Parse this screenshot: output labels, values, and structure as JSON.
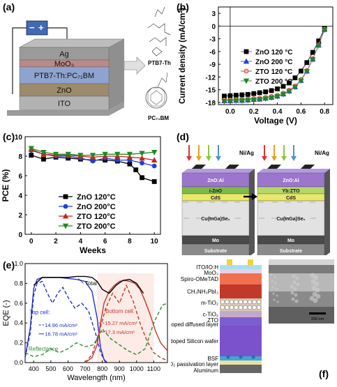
{
  "panels": {
    "a": {
      "label": "(a)",
      "layers": [
        "Ag",
        "MoO₃",
        "PTB7-Th:PC₇₁BM",
        "ZnO",
        "ITO"
      ],
      "layer_colors": [
        "#9b9b9b",
        "#b98a8a",
        "#8fa3cf",
        "#9c8b6c",
        "#b2b2b2"
      ],
      "minus": "−",
      "plus": "+",
      "molecule_1": "PTB7-Th",
      "molecule_2": "PC₇₁BM"
    },
    "b": {
      "label": "(b)",
      "ylabel": "Current density (mA/cm²)",
      "xlabel": "Voltage (V)",
      "yticks": [
        "3",
        "0",
        "-3",
        "-6",
        "-9",
        "-12",
        "-15",
        "-18"
      ],
      "xticks": [
        "0.0",
        "0.2",
        "0.4",
        "0.6",
        "0.8"
      ],
      "legend": [
        "ZnO  120 °C",
        "ZnO  200 °C",
        "ZTO  120 °C",
        "ZTO  200 °C"
      ]
    },
    "c": {
      "label": "(c)",
      "ylabel": "PCE (%)",
      "xlabel": "Weeks",
      "yticks": [
        "10",
        "8",
        "6",
        "4",
        "2",
        "0"
      ],
      "xticks": [
        "0",
        "2",
        "4",
        "6",
        "8",
        "10"
      ],
      "legend": [
        "ZnO  120°C",
        "ZnO  200°C",
        "ZTO  120°C",
        "ZTO  200°C"
      ]
    },
    "d": {
      "label": "(d)",
      "contact": "Ni/Ag",
      "left_layers": [
        "ZnO:Al",
        "i-ZnO",
        "CdS",
        "Cu(InGa)Se₂",
        "Mo",
        "Substrate"
      ],
      "right_layers": [
        "ZnO:Al",
        "Yb:ZTO",
        "CdS",
        "Cu(InGa)Se₂",
        "Mo",
        "Substrate"
      ]
    },
    "e": {
      "label": "(e)",
      "ylabel": "EQE (-)",
      "xlabel": "Wavelength (nm)",
      "yticks": [
        "1.0",
        "0.8",
        "0.6",
        "0.4",
        "0.2",
        "0.0"
      ],
      "xticks": [
        "400",
        "500",
        "600",
        "700",
        "800",
        "900",
        "1000",
        "1100"
      ],
      "total": "Total",
      "top_cell": "Top cell:",
      "top_j1": "14.96 mA/cm²",
      "top_j2": "16.78 mA/cm²",
      "bottom_cell": "Bottom cell:",
      "bottom_j1": "15.27 mA/cm²",
      "bottom_j2": "17.3 mA/cm²",
      "reflectance": "Reflectance"
    },
    "f": {
      "label": "(f)",
      "layers": [
        "ITO/IO:H",
        "MoO₃",
        "Spiro-OMeTAD",
        "CH₃NH₃PbI₃",
        "m-TiO₂",
        "c-TiO₂",
        "ZTO",
        "P-doped diffused layer",
        "N-doped Silicon wafer",
        "BSF",
        "SiO₂ passivation layer",
        "Aluminum"
      ],
      "scalebar": "200 nm"
    }
  },
  "chart_data": [
    {
      "panel": "b",
      "type": "line",
      "xlabel": "Voltage (V)",
      "ylabel": "Current density (mA/cm²)",
      "xlim": [
        -0.1,
        0.87
      ],
      "ylim": [
        -18.5,
        4.5
      ],
      "series": [
        {
          "name": "ZnO  120 °C",
          "color": "#000000",
          "marker": "square",
          "x": [
            -0.05,
            0.0,
            0.05,
            0.1,
            0.15,
            0.2,
            0.25,
            0.3,
            0.35,
            0.4,
            0.45,
            0.5,
            0.55,
            0.6,
            0.65,
            0.7,
            0.75,
            0.8
          ],
          "y": [
            -16.5,
            -16.4,
            -16.3,
            -16.2,
            -16.1,
            -15.9,
            -15.7,
            -15.5,
            -15.2,
            -14.8,
            -14.2,
            -13.4,
            -12.2,
            -10.6,
            -8.6,
            -6.2,
            -3.5,
            -0.6
          ]
        },
        {
          "name": "ZnO  200 °C",
          "color": "#1f3fd8",
          "marker": "triangle-up",
          "x": [
            -0.05,
            0.0,
            0.05,
            0.1,
            0.15,
            0.2,
            0.25,
            0.3,
            0.35,
            0.4,
            0.45,
            0.5,
            0.55,
            0.6,
            0.65,
            0.7,
            0.75,
            0.8
          ],
          "y": [
            -17.6,
            -17.6,
            -17.5,
            -17.5,
            -17.4,
            -17.3,
            -17.2,
            -17.0,
            -16.8,
            -16.5,
            -16.0,
            -15.3,
            -14.3,
            -12.8,
            -10.6,
            -7.8,
            -4.5,
            -0.8
          ]
        },
        {
          "name": "ZTO  120 °C",
          "color": "#d42a1a",
          "marker": "circle",
          "x": [
            -0.05,
            0.0,
            0.05,
            0.1,
            0.15,
            0.2,
            0.25,
            0.3,
            0.35,
            0.4,
            0.45,
            0.5,
            0.55,
            0.6,
            0.65,
            0.7,
            0.75,
            0.8
          ],
          "y": [
            -17.4,
            -17.4,
            -17.3,
            -17.3,
            -17.2,
            -17.1,
            -17.0,
            -16.8,
            -16.6,
            -16.3,
            -15.8,
            -15.1,
            -14.1,
            -12.6,
            -10.5,
            -7.7,
            -4.4,
            -0.7
          ]
        },
        {
          "name": "ZTO  200 °C",
          "color": "#1e8a1e",
          "marker": "triangle-down",
          "x": [
            -0.05,
            0.0,
            0.05,
            0.1,
            0.15,
            0.2,
            0.25,
            0.3,
            0.35,
            0.4,
            0.45,
            0.5,
            0.55,
            0.6,
            0.65,
            0.7,
            0.75,
            0.8
          ],
          "y": [
            -17.7,
            -17.7,
            -17.6,
            -17.6,
            -17.5,
            -17.4,
            -17.3,
            -17.1,
            -16.9,
            -16.6,
            -16.1,
            -15.4,
            -14.4,
            -12.9,
            -10.7,
            -7.9,
            -4.6,
            -0.9
          ]
        }
      ]
    },
    {
      "panel": "c",
      "type": "line",
      "xlabel": "Weeks",
      "ylabel": "PCE (%)",
      "xlim": [
        -0.5,
        10.5
      ],
      "ylim": [
        0,
        10
      ],
      "series": [
        {
          "name": "ZnO  120°C",
          "color": "#000000",
          "marker": "square",
          "x": [
            0,
            1,
            2,
            3,
            4,
            5,
            6,
            7,
            8,
            8.5,
            9,
            10
          ],
          "y": [
            8.1,
            7.7,
            7.9,
            7.8,
            7.7,
            7.6,
            7.6,
            7.5,
            7.2,
            6.6,
            5.8,
            5.4
          ]
        },
        {
          "name": "ZnO  200°C",
          "color": "#1f3fd8",
          "marker": "circle",
          "x": [
            0,
            1,
            2,
            3,
            4,
            5,
            6,
            7,
            8,
            9,
            10
          ],
          "y": [
            8.6,
            8.2,
            8.0,
            8.0,
            7.8,
            7.5,
            7.8,
            7.6,
            7.6,
            7.3,
            7.0
          ]
        },
        {
          "name": "ZTO  120°C",
          "color": "#c0281a",
          "marker": "triangle-up",
          "x": [
            0,
            1,
            2,
            3,
            4,
            5,
            6,
            7,
            8,
            9,
            10
          ],
          "y": [
            8.7,
            8.2,
            8.1,
            8.1,
            8.0,
            7.9,
            8.0,
            8.0,
            7.9,
            7.8,
            7.6
          ]
        },
        {
          "name": "ZTO  200°C",
          "color": "#1e8a1e",
          "marker": "triangle-down",
          "x": [
            0,
            1,
            2,
            3,
            4,
            5,
            6,
            7,
            8,
            9,
            10
          ],
          "y": [
            8.8,
            8.4,
            8.2,
            8.2,
            8.1,
            8.1,
            8.2,
            8.2,
            8.2,
            8.3,
            8.4
          ]
        }
      ]
    },
    {
      "panel": "e",
      "type": "line",
      "xlabel": "Wavelength (nm)",
      "ylabel": "EQE (-)",
      "xlim": [
        350,
        1180
      ],
      "ylim": [
        0,
        1.0
      ],
      "series": [
        {
          "color": "#1f2fd0",
          "dash": "solid",
          "x": [
            350,
            380,
            400,
            420,
            450,
            500,
            550,
            600,
            650,
            700,
            740,
            770,
            790,
            810,
            830
          ],
          "y": [
            0.05,
            0.35,
            0.75,
            0.84,
            0.86,
            0.86,
            0.86,
            0.85,
            0.84,
            0.82,
            0.72,
            0.45,
            0.15,
            0.03,
            0.0
          ]
        },
        {
          "color": "#1f2fd0",
          "dash": "dashed",
          "x": [
            350,
            380,
            400,
            420,
            450,
            480,
            510,
            540,
            570,
            600,
            640,
            680,
            720,
            760,
            790,
            820
          ],
          "y": [
            0.05,
            0.3,
            0.68,
            0.8,
            0.82,
            0.7,
            0.6,
            0.7,
            0.76,
            0.66,
            0.55,
            0.6,
            0.52,
            0.3,
            0.1,
            0.0
          ]
        },
        {
          "color": "#c0392b",
          "dash": "solid",
          "x": [
            700,
            740,
            770,
            790,
            810,
            840,
            870,
            900,
            930,
            960,
            990,
            1020,
            1050,
            1080,
            1110,
            1140,
            1180
          ],
          "y": [
            0.0,
            0.05,
            0.18,
            0.4,
            0.6,
            0.72,
            0.78,
            0.82,
            0.83,
            0.82,
            0.8,
            0.74,
            0.62,
            0.48,
            0.32,
            0.2,
            0.12
          ]
        },
        {
          "color": "#c0392b",
          "dash": "dashed",
          "x": [
            700,
            740,
            780,
            820,
            860,
            900,
            940,
            980,
            1020,
            1060,
            1100,
            1140,
            1180
          ],
          "y": [
            0.0,
            0.08,
            0.3,
            0.55,
            0.7,
            0.6,
            0.78,
            0.62,
            0.4,
            0.22,
            0.1,
            0.05,
            0.02
          ]
        },
        {
          "color": "#000000",
          "dash": "solid",
          "x": [
            400,
            450,
            500,
            550,
            600,
            650,
            700,
            740,
            770,
            800,
            840,
            880,
            920,
            960,
            1000,
            1040
          ],
          "y": [
            0.78,
            0.86,
            0.86,
            0.86,
            0.86,
            0.87,
            0.87,
            0.86,
            0.82,
            0.74,
            0.7,
            0.78,
            0.83,
            0.84,
            0.8,
            0.7
          ]
        },
        {
          "color": "#2e8b2e",
          "dash": "dashed",
          "x": [
            350,
            400,
            450,
            500,
            550,
            600,
            650,
            700,
            750,
            800,
            850,
            900,
            950,
            1000,
            1050,
            1100,
            1150,
            1180
          ],
          "y": [
            0.1,
            0.06,
            0.08,
            0.14,
            0.1,
            0.14,
            0.2,
            0.16,
            0.18,
            0.34,
            0.24,
            0.18,
            0.12,
            0.08,
            0.14,
            0.4,
            0.58,
            0.6
          ]
        }
      ]
    }
  ]
}
